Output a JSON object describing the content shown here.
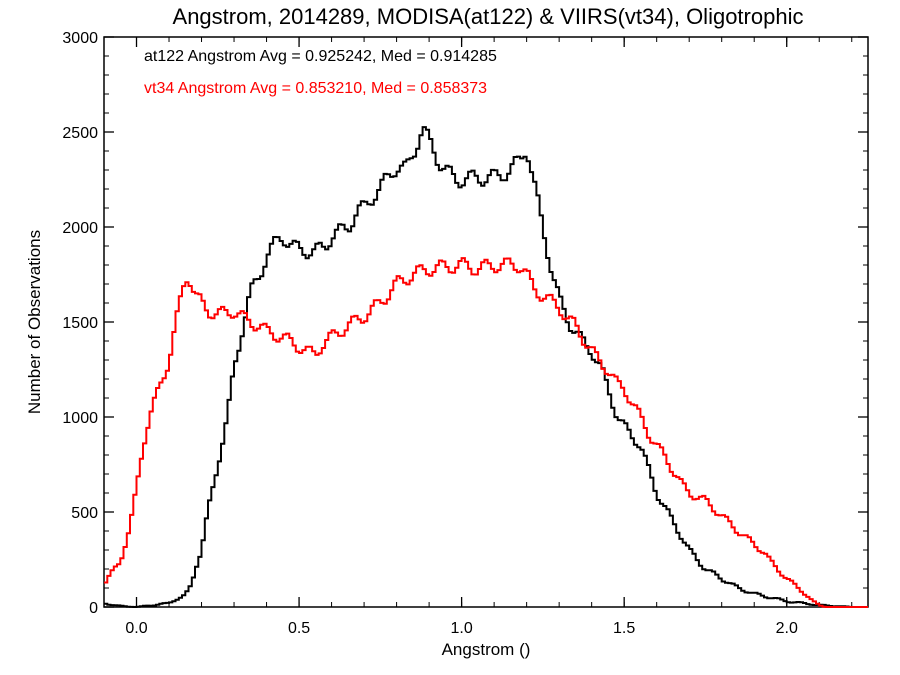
{
  "chart_data": {
    "type": "histogram",
    "title": "Angstrom, 2014289, MODISA(at122) & VIIRS(vt34), Oligotrophic",
    "xlabel": "Angstrom ()",
    "ylabel": "Number of Observations",
    "xlim": [
      -0.1,
      2.25
    ],
    "ylim": [
      0,
      3000
    ],
    "x_ticks": [
      0.0,
      0.5,
      1.0,
      1.5,
      2.0
    ],
    "x_tick_labels": [
      "0.0",
      "0.5",
      "1.0",
      "1.5",
      "2.0"
    ],
    "y_ticks": [
      0,
      500,
      1000,
      1500,
      2000,
      2500,
      3000
    ],
    "y_tick_labels": [
      "0",
      "500",
      "1000",
      "1500",
      "2000",
      "2500",
      "3000"
    ],
    "bin_width": 0.01,
    "grid": false,
    "series": [
      {
        "name": "at122",
        "color": "#000000",
        "legend": "at122 Angstrom Avg = 0.925242, Med = 0.914285",
        "points": [
          [
            -0.1,
            20
          ],
          [
            -0.05,
            5
          ],
          [
            0.0,
            0
          ],
          [
            0.05,
            10
          ],
          [
            0.1,
            20
          ],
          [
            0.12,
            40
          ],
          [
            0.15,
            60
          ],
          [
            0.17,
            120
          ],
          [
            0.18,
            200
          ],
          [
            0.2,
            300
          ],
          [
            0.22,
            500
          ],
          [
            0.25,
            750
          ],
          [
            0.28,
            1000
          ],
          [
            0.3,
            1250
          ],
          [
            0.33,
            1500
          ],
          [
            0.35,
            1650
          ],
          [
            0.38,
            1750
          ],
          [
            0.4,
            1850
          ],
          [
            0.43,
            1920
          ],
          [
            0.45,
            1950
          ],
          [
            0.48,
            1900
          ],
          [
            0.5,
            1880
          ],
          [
            0.55,
            1870
          ],
          [
            0.58,
            1900
          ],
          [
            0.6,
            1950
          ],
          [
            0.63,
            1980
          ],
          [
            0.65,
            2000
          ],
          [
            0.68,
            2080
          ],
          [
            0.7,
            2100
          ],
          [
            0.72,
            2150
          ],
          [
            0.75,
            2200
          ],
          [
            0.78,
            2280
          ],
          [
            0.8,
            2320
          ],
          [
            0.83,
            2300
          ],
          [
            0.85,
            2380
          ],
          [
            0.87,
            2480
          ],
          [
            0.88,
            2520
          ],
          [
            0.9,
            2450
          ],
          [
            0.93,
            2350
          ],
          [
            0.95,
            2300
          ],
          [
            0.98,
            2250
          ],
          [
            1.0,
            2250
          ],
          [
            1.05,
            2260
          ],
          [
            1.1,
            2260
          ],
          [
            1.15,
            2300
          ],
          [
            1.18,
            2350
          ],
          [
            1.2,
            2430
          ],
          [
            1.22,
            2250
          ],
          [
            1.25,
            2000
          ],
          [
            1.28,
            1750
          ],
          [
            1.3,
            1620
          ],
          [
            1.33,
            1500
          ],
          [
            1.35,
            1450
          ],
          [
            1.38,
            1380
          ],
          [
            1.4,
            1350
          ],
          [
            1.43,
            1250
          ],
          [
            1.45,
            1150
          ],
          [
            1.48,
            1000
          ],
          [
            1.5,
            950
          ],
          [
            1.55,
            850
          ],
          [
            1.58,
            700
          ],
          [
            1.6,
            600
          ],
          [
            1.65,
            450
          ],
          [
            1.7,
            300
          ],
          [
            1.75,
            200
          ],
          [
            1.8,
            150
          ],
          [
            1.85,
            100
          ],
          [
            1.9,
            70
          ],
          [
            1.95,
            50
          ],
          [
            2.0,
            30
          ],
          [
            2.05,
            20
          ],
          [
            2.1,
            10
          ],
          [
            2.15,
            5
          ],
          [
            2.2,
            0
          ]
        ]
      },
      {
        "name": "vt34",
        "color": "#ff0000",
        "legend": "vt34 Angstrom Avg = 0.853210, Med = 0.858373",
        "points": [
          [
            -0.1,
            120
          ],
          [
            -0.08,
            170
          ],
          [
            -0.05,
            240
          ],
          [
            -0.02,
            420
          ],
          [
            0.0,
            620
          ],
          [
            0.02,
            850
          ],
          [
            0.04,
            1000
          ],
          [
            0.06,
            1100
          ],
          [
            0.08,
            1200
          ],
          [
            0.1,
            1300
          ],
          [
            0.12,
            1480
          ],
          [
            0.14,
            1650
          ],
          [
            0.15,
            1730
          ],
          [
            0.16,
            1750
          ],
          [
            0.17,
            1700
          ],
          [
            0.18,
            1640
          ],
          [
            0.2,
            1600
          ],
          [
            0.22,
            1560
          ],
          [
            0.25,
            1540
          ],
          [
            0.28,
            1550
          ],
          [
            0.3,
            1560
          ],
          [
            0.33,
            1520
          ],
          [
            0.35,
            1500
          ],
          [
            0.38,
            1480
          ],
          [
            0.4,
            1450
          ],
          [
            0.45,
            1420
          ],
          [
            0.5,
            1370
          ],
          [
            0.53,
            1340
          ],
          [
            0.55,
            1330
          ],
          [
            0.57,
            1380
          ],
          [
            0.6,
            1420
          ],
          [
            0.65,
            1480
          ],
          [
            0.7,
            1530
          ],
          [
            0.75,
            1600
          ],
          [
            0.8,
            1700
          ],
          [
            0.85,
            1750
          ],
          [
            0.9,
            1780
          ],
          [
            0.95,
            1790
          ],
          [
            1.0,
            1800
          ],
          [
            1.05,
            1780
          ],
          [
            1.1,
            1800
          ],
          [
            1.15,
            1800
          ],
          [
            1.18,
            1800
          ],
          [
            1.2,
            1750
          ],
          [
            1.22,
            1680
          ],
          [
            1.25,
            1640
          ],
          [
            1.28,
            1600
          ],
          [
            1.3,
            1580
          ],
          [
            1.33,
            1510
          ],
          [
            1.35,
            1480
          ],
          [
            1.38,
            1400
          ],
          [
            1.4,
            1350
          ],
          [
            1.42,
            1300
          ],
          [
            1.45,
            1250
          ],
          [
            1.48,
            1170
          ],
          [
            1.5,
            1150
          ],
          [
            1.55,
            1000
          ],
          [
            1.58,
            900
          ],
          [
            1.6,
            850
          ],
          [
            1.63,
            780
          ],
          [
            1.65,
            720
          ],
          [
            1.68,
            640
          ],
          [
            1.7,
            600
          ],
          [
            1.75,
            560
          ],
          [
            1.8,
            480
          ],
          [
            1.85,
            400
          ],
          [
            1.9,
            330
          ],
          [
            1.93,
            290
          ],
          [
            1.95,
            240
          ],
          [
            2.0,
            150
          ],
          [
            2.05,
            80
          ],
          [
            2.08,
            30
          ],
          [
            2.1,
            10
          ],
          [
            2.12,
            0
          ],
          [
            2.25,
            0
          ]
        ]
      }
    ]
  }
}
